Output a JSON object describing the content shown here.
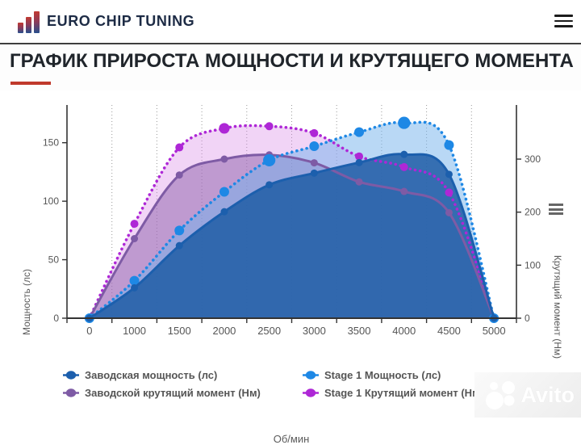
{
  "header": {
    "brand": "EURO CHIP TUNING",
    "menu_icon": "hamburger-icon"
  },
  "title": {
    "text": "ГРАФИК ПРИРОСТА МОЩНОСТИ И КРУТЯЩЕГО МОМЕНТА",
    "accent_color": "#c0392b"
  },
  "watermark": {
    "text": "Avito"
  },
  "chart_data": {
    "type": "area",
    "categories": [
      "0",
      "1000",
      "1500",
      "2000",
      "2500",
      "3000",
      "3500",
      "4000",
      "4500",
      "5000"
    ],
    "xlabel": "Об/мин",
    "grid": "vertical-dotted",
    "legend_position": "bottom",
    "y_left": {
      "label": "Мощность (лс)",
      "ticks": [
        0,
        50,
        100,
        150
      ],
      "ylim": [
        0,
        182
      ]
    },
    "y_right": {
      "label": "Крутящий момент (Нм)",
      "ticks": [
        0,
        100,
        200,
        300
      ],
      "ylim": [
        0,
        400
      ]
    },
    "series": [
      {
        "name": "Заводская мощность (лс)",
        "axis": "left",
        "line_style": "solid",
        "color": "#1c5fad",
        "fill": "rgba(31,93,166,0.85)",
        "marker_radius": 4.5,
        "highlight_points": [],
        "values": [
          0,
          26,
          62,
          91,
          114,
          124,
          133,
          140,
          123,
          0
        ]
      },
      {
        "name": "Stage 1 Мощность (лс)",
        "axis": "left",
        "line_style": "dotted",
        "color": "#1e88e5",
        "fill": "rgba(116,178,236,0.50)",
        "marker_radius": 6,
        "highlight_points": [
          4,
          7
        ],
        "values": [
          0,
          32,
          75,
          108,
          135,
          147,
          159,
          167,
          148,
          0
        ]
      },
      {
        "name": "Заводской крутящий момент (Нм)",
        "axis": "right",
        "line_style": "solid",
        "color": "#7e5ba5",
        "fill": "rgba(142,96,170,0.50)",
        "marker_radius": 4.5,
        "highlight_points": [],
        "values": [
          0,
          150,
          270,
          300,
          308,
          293,
          257,
          239,
          199,
          0
        ]
      },
      {
        "name": "Stage 1 Крутящий момент (Нм)",
        "axis": "right",
        "line_style": "dotted",
        "color": "#ae27d6",
        "fill": "rgba(213,125,229,0.33)",
        "marker_radius": 5,
        "highlight_points": [
          3
        ],
        "values": [
          0,
          178,
          322,
          358,
          362,
          349,
          305,
          285,
          237,
          0
        ]
      }
    ]
  }
}
